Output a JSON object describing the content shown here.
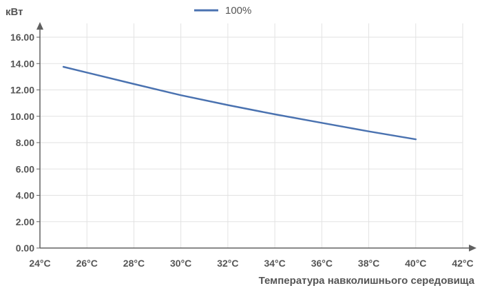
{
  "chart_data": {
    "type": "line",
    "title": "",
    "xlabel": "Температура навколишнього середовища",
    "ylabel": "кВт",
    "x_unit": "°C",
    "xlim": [
      24,
      42
    ],
    "ylim": [
      0,
      16
    ],
    "x_ticks": [
      24,
      26,
      28,
      30,
      32,
      34,
      36,
      38,
      40,
      42
    ],
    "x_tick_labels": [
      "24°C",
      "26°C",
      "28°C",
      "30°C",
      "32°C",
      "34°C",
      "36°C",
      "38°C",
      "40°C",
      "42°C"
    ],
    "y_ticks": [
      0,
      2,
      4,
      6,
      8,
      10,
      12,
      14,
      16
    ],
    "y_tick_labels": [
      "0.00",
      "2.00",
      "4.00",
      "6.00",
      "8.00",
      "10.00",
      "12.00",
      "14.00",
      "16.00"
    ],
    "grid": true,
    "legend_position": "top-center",
    "series": [
      {
        "name": "100%",
        "color": "#4a72b0",
        "x": [
          25,
          28,
          30,
          32,
          34,
          36,
          38,
          40
        ],
        "values": [
          13.75,
          12.45,
          11.6,
          10.85,
          10.15,
          9.5,
          8.85,
          8.25
        ]
      }
    ]
  }
}
